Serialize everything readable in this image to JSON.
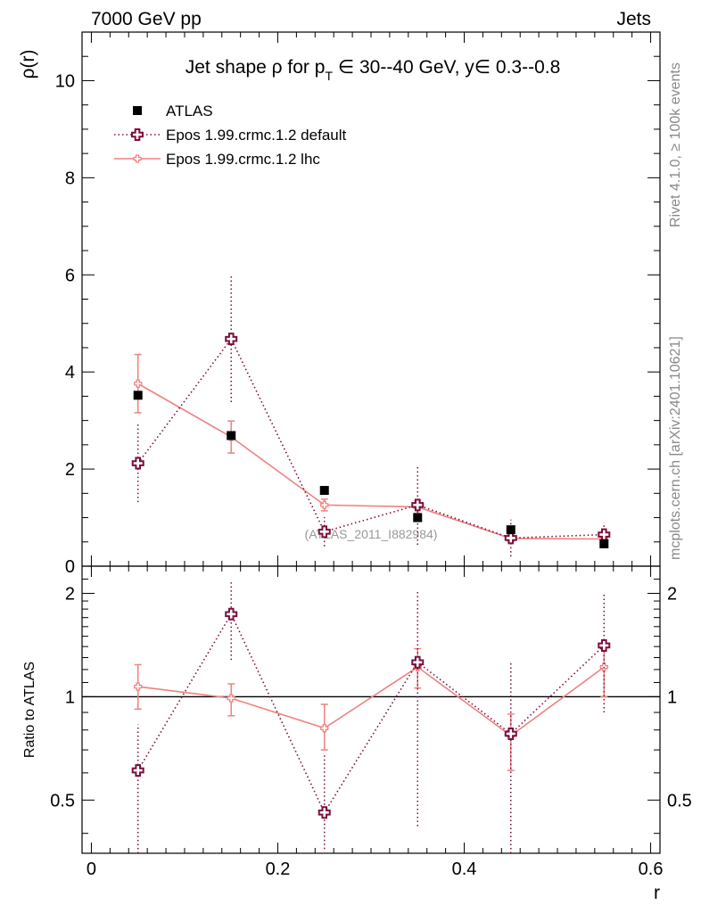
{
  "header": {
    "left": "7000 GeV pp",
    "right": "Jets"
  },
  "side_labels": {
    "rivet": "Rivet 4.1.0, ≥ 100k events",
    "mcplots": "mcplots.cern.ch [arXiv:2401.10621]"
  },
  "watermark": "(ATLAS_2011_I882984)",
  "colors": {
    "atlas": "#000000",
    "default": "#7a0f3d",
    "lhc": "#f08080",
    "axis": "#000000"
  },
  "chart_data": [
    {
      "type": "scatter",
      "title": "Jet shape ρ for p_T ∈ 30--40 GeV, y∈ 0.3--0.8",
      "title_parts": {
        "pre": "Jet shape ρ for p",
        "sub": "T",
        "post": " ∈ 30--40 GeV, y∈ 0.3--0.8"
      },
      "ylabel": "ρ(r)",
      "xlabel": "",
      "xlim": [
        -0.01,
        0.61
      ],
      "ylim": [
        0,
        11
      ],
      "y_ticks": [
        0,
        2,
        4,
        6,
        8,
        10
      ],
      "y_tick_labels": [
        "0",
        "2",
        "4",
        "6",
        "8",
        "10"
      ],
      "legend_position": "top-left",
      "legend": [
        "ATLAS",
        "Epos 1.99.crmc.1.2 default",
        "Epos 1.99.crmc.1.2 lhc"
      ],
      "series": [
        {
          "name": "ATLAS",
          "style": "marker",
          "x": [
            0.05,
            0.15,
            0.25,
            0.35,
            0.45,
            0.55
          ],
          "y": [
            3.52,
            2.69,
            1.56,
            1.0,
            0.75,
            0.46
          ],
          "err": [
            0.05,
            0.05,
            0.05,
            0.04,
            0.03,
            0.03
          ]
        },
        {
          "name": "Epos 1.99.crmc.1.2 default",
          "style": "dotted",
          "x": [
            0.05,
            0.15,
            0.25,
            0.35,
            0.45,
            0.55
          ],
          "y": [
            2.12,
            4.68,
            0.71,
            1.26,
            0.58,
            0.65
          ],
          "err": [
            0.8,
            1.3,
            0.3,
            0.82,
            0.38,
            0.25
          ]
        },
        {
          "name": "Epos 1.99.crmc.1.2 lhc",
          "style": "solid",
          "x": [
            0.05,
            0.15,
            0.25,
            0.35,
            0.45,
            0.55
          ],
          "y": [
            3.76,
            2.66,
            1.26,
            1.22,
            0.57,
            0.56
          ],
          "err": [
            0.6,
            0.33,
            0.12,
            0.13,
            0.06,
            0.07
          ]
        }
      ]
    },
    {
      "type": "scatter",
      "title": "",
      "ylabel": "Ratio to ATLAS",
      "xlabel": "r",
      "xlim": [
        -0.01,
        0.61
      ],
      "ylim": [
        0.35,
        2.4
      ],
      "y_scale": "log",
      "y_ticks": [
        0.5,
        1,
        2
      ],
      "y_tick_labels": [
        "0.5",
        "1",
        "2"
      ],
      "x_ticks": [
        0,
        0.2,
        0.4,
        0.6
      ],
      "x_tick_labels": [
        "0",
        "0.2",
        "0.4",
        "0.6"
      ],
      "reference_line": 1,
      "series": [
        {
          "name": "Epos 1.99.crmc.1.2 default",
          "style": "dotted",
          "x": [
            0.05,
            0.15,
            0.25,
            0.35,
            0.45,
            0.55
          ],
          "y": [
            0.61,
            1.74,
            0.46,
            1.26,
            0.78,
            1.41
          ],
          "err_low": [
            0.27,
            0.46,
            0.1,
            0.84,
            0.43,
            0.51
          ],
          "err_high": [
            0.22,
            0.43,
            0.22,
            0.76,
            0.49,
            0.59
          ]
        },
        {
          "name": "Epos 1.99.crmc.1.2 lhc",
          "style": "solid",
          "x": [
            0.05,
            0.15,
            0.25,
            0.35,
            0.45,
            0.55
          ],
          "y": [
            1.07,
            0.99,
            0.81,
            1.22,
            0.77,
            1.22
          ],
          "err_low": [
            0.15,
            0.11,
            0.11,
            0.16,
            0.16,
            0.22
          ],
          "err_high": [
            0.17,
            0.1,
            0.14,
            0.16,
            0.12,
            0.18
          ]
        }
      ]
    }
  ]
}
